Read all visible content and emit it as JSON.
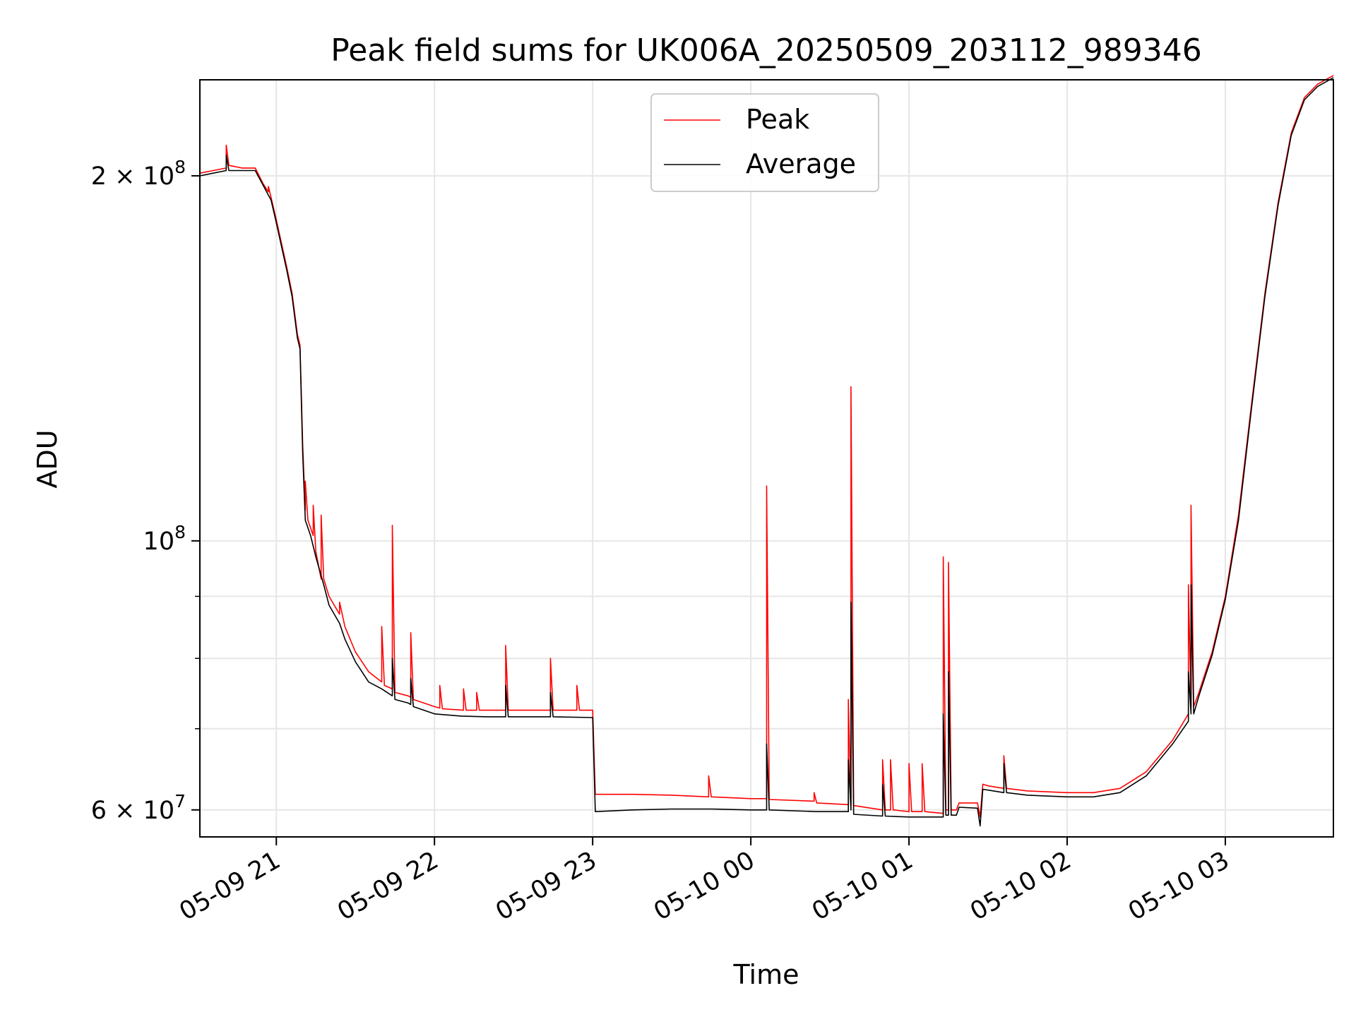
{
  "chart_data": {
    "type": "line",
    "title": "Peak field sums for UK006A_20250509_203112_989346",
    "xlabel": "Time",
    "ylabel": "ADU",
    "y_scale": "log",
    "ylim": [
      57000000,
      240000000
    ],
    "xlim": [
      "05-09 20:31",
      "05-10 03:41"
    ],
    "grid": true,
    "legend_position": "top-center",
    "x_ticks": [
      {
        "t": "05-09 21:00",
        "label": "05-09 21"
      },
      {
        "t": "05-09 22:00",
        "label": "05-09 22"
      },
      {
        "t": "05-09 23:00",
        "label": "05-09 23"
      },
      {
        "t": "05-10 00:00",
        "label": "05-10 00"
      },
      {
        "t": "05-10 01:00",
        "label": "05-10 01"
      },
      {
        "t": "05-10 02:00",
        "label": "05-10 02"
      },
      {
        "t": "05-10 03:00",
        "label": "05-10 03"
      }
    ],
    "y_ticks": [
      {
        "v": 200000000,
        "base": "2 × 10",
        "exp": "8"
      },
      {
        "v": 100000000,
        "base": "10",
        "exp": "8"
      },
      {
        "v": 60000000,
        "base": "6 × 10",
        "exp": "7"
      }
    ],
    "y_minor_ticks": [
      70000000,
      80000000,
      90000000
    ],
    "series": [
      {
        "name": "Peak",
        "color": "#ff0000",
        "points": [
          [
            "05-09 20:31",
            201000000
          ],
          [
            "05-09 20:36",
            202000000
          ],
          [
            "05-09 20:41",
            203000000
          ],
          [
            "05-09 20:41",
            212000000
          ],
          [
            "05-09 20:42",
            204000000
          ],
          [
            "05-09 20:47",
            203000000
          ],
          [
            "05-09 20:52",
            203000000
          ],
          [
            "05-09 20:55",
            197000000
          ],
          [
            "05-09 20:57",
            194000000
          ],
          [
            "05-09 20:57",
            196000000
          ],
          [
            "05-09 20:58",
            192000000
          ],
          [
            "05-09 21:00",
            184000000
          ],
          [
            "05-09 21:04",
            168000000
          ],
          [
            "05-09 21:06",
            160000000
          ],
          [
            "05-09 21:08",
            148000000
          ],
          [
            "05-09 21:09",
            145000000
          ],
          [
            "05-09 21:10",
            120000000
          ],
          [
            "05-09 21:11",
            106000000
          ],
          [
            "05-09 21:11",
            112000000
          ],
          [
            "05-09 21:12",
            104000000
          ],
          [
            "05-09 21:14",
            101000000
          ],
          [
            "05-09 21:14",
            107000000
          ],
          [
            "05-09 21:15",
            98000000
          ],
          [
            "05-09 21:17",
            93000000
          ],
          [
            "05-09 21:17",
            105000000
          ],
          [
            "05-09 21:18",
            93000000
          ],
          [
            "05-09 21:20",
            90000000
          ],
          [
            "05-09 21:24",
            87000000
          ],
          [
            "05-09 21:24",
            89000000
          ],
          [
            "05-09 21:26",
            85000000
          ],
          [
            "05-09 21:30",
            81000000
          ],
          [
            "05-09 21:35",
            78000000
          ],
          [
            "05-09 21:40",
            76500000
          ],
          [
            "05-09 21:40",
            85000000
          ],
          [
            "05-09 21:41",
            76000000
          ],
          [
            "05-09 21:44",
            75500000
          ],
          [
            "05-09 21:44",
            103000000
          ],
          [
            "05-09 21:45",
            75000000
          ],
          [
            "05-09 21:50",
            74500000
          ],
          [
            "05-09 21:51",
            74300000
          ],
          [
            "05-09 21:51",
            84000000
          ],
          [
            "05-09 21:52",
            74000000
          ],
          [
            "05-09 22:00",
            73000000
          ],
          [
            "05-09 22:02",
            72800000
          ],
          [
            "05-09 22:02",
            76000000
          ],
          [
            "05-09 22:03",
            72700000
          ],
          [
            "05-09 22:11",
            72500000
          ],
          [
            "05-09 22:11",
            75500000
          ],
          [
            "05-09 22:12",
            72500000
          ],
          [
            "05-09 22:16",
            72500000
          ],
          [
            "05-09 22:16",
            75000000
          ],
          [
            "05-09 22:17",
            72500000
          ],
          [
            "05-09 22:27",
            72500000
          ],
          [
            "05-09 22:27",
            82000000
          ],
          [
            "05-09 22:28",
            72500000
          ],
          [
            "05-09 22:44",
            72500000
          ],
          [
            "05-09 22:44",
            80000000
          ],
          [
            "05-09 22:45",
            72500000
          ],
          [
            "05-09 22:54",
            72500000
          ],
          [
            "05-09 22:54",
            76000000
          ],
          [
            "05-09 22:55",
            72500000
          ],
          [
            "05-09 23:00",
            72500000
          ],
          [
            "05-09 23:01",
            61800000
          ],
          [
            "05-09 23:15",
            61800000
          ],
          [
            "05-09 23:30",
            61700000
          ],
          [
            "05-09 23:44",
            61500000
          ],
          [
            "05-09 23:44",
            64000000
          ],
          [
            "05-09 23:45",
            61500000
          ],
          [
            "05-10 00:00",
            61300000
          ],
          [
            "05-10 00:06",
            61300000
          ],
          [
            "05-10 00:06",
            111000000
          ],
          [
            "05-10 00:07",
            61200000
          ],
          [
            "05-10 00:24",
            61000000
          ],
          [
            "05-10 00:24",
            62000000
          ],
          [
            "05-10 00:25",
            60800000
          ],
          [
            "05-10 00:37",
            60600000
          ],
          [
            "05-10 00:37",
            74000000
          ],
          [
            "05-10 00:38",
            60500000
          ],
          [
            "05-10 00:38",
            134000000
          ],
          [
            "05-10 00:39",
            60500000
          ],
          [
            "05-10 00:50",
            60000000
          ],
          [
            "05-10 00:50",
            66000000
          ],
          [
            "05-10 00:51",
            60000000
          ],
          [
            "05-10 00:53",
            60000000
          ],
          [
            "05-10 00:53",
            66000000
          ],
          [
            "05-10 00:54",
            60000000
          ],
          [
            "05-10 01:00",
            59800000
          ],
          [
            "05-10 01:00",
            65500000
          ],
          [
            "05-10 01:01",
            59800000
          ],
          [
            "05-10 01:05",
            59800000
          ],
          [
            "05-10 01:05",
            65500000
          ],
          [
            "05-10 01:06",
            59800000
          ],
          [
            "05-10 01:13",
            59600000
          ],
          [
            "05-10 01:13",
            97000000
          ],
          [
            "05-10 01:14",
            60000000
          ],
          [
            "05-10 01:15",
            60000000
          ],
          [
            "05-10 01:15",
            96000000
          ],
          [
            "05-10 01:16",
            60000000
          ],
          [
            "05-10 01:18",
            60000000
          ],
          [
            "05-10 01:19",
            60800000
          ],
          [
            "05-10 01:26",
            60800000
          ],
          [
            "05-10 01:27",
            59200000
          ],
          [
            "05-10 01:28",
            63000000
          ],
          [
            "05-10 01:30",
            62800000
          ],
          [
            "05-10 01:36",
            62500000
          ],
          [
            "05-10 01:36",
            66500000
          ],
          [
            "05-10 01:37",
            62500000
          ],
          [
            "05-10 01:45",
            62200000
          ],
          [
            "05-10 02:00",
            62000000
          ],
          [
            "05-10 02:10",
            62000000
          ],
          [
            "05-10 02:20",
            62500000
          ],
          [
            "05-10 02:30",
            64500000
          ],
          [
            "05-10 02:40",
            68500000
          ],
          [
            "05-10 02:46",
            72000000
          ],
          [
            "05-10 02:46",
            92000000
          ],
          [
            "05-10 02:47",
            73000000
          ],
          [
            "05-10 02:47",
            107000000
          ],
          [
            "05-10 02:48",
            73000000
          ],
          [
            "05-10 02:50",
            75000000
          ],
          [
            "05-10 02:55",
            81000000
          ],
          [
            "05-10 03:00",
            90000000
          ],
          [
            "05-10 03:05",
            105000000
          ],
          [
            "05-10 03:10",
            130000000
          ],
          [
            "05-10 03:15",
            160000000
          ],
          [
            "05-10 03:20",
            190000000
          ],
          [
            "05-10 03:25",
            217000000
          ],
          [
            "05-10 03:30",
            232000000
          ],
          [
            "05-10 03:35",
            238000000
          ],
          [
            "05-10 03:41",
            242000000
          ]
        ]
      },
      {
        "name": "Average",
        "color": "#000000",
        "points": [
          [
            "05-09 20:31",
            200000000
          ],
          [
            "05-09 20:36",
            201000000
          ],
          [
            "05-09 20:41",
            202000000
          ],
          [
            "05-09 20:41",
            208000000
          ],
          [
            "05-09 20:42",
            202000000
          ],
          [
            "05-09 20:47",
            202000000
          ],
          [
            "05-09 20:52",
            202000000
          ],
          [
            "05-09 20:58",
            191000000
          ],
          [
            "05-09 21:00",
            183000000
          ],
          [
            "05-09 21:04",
            167000000
          ],
          [
            "05-09 21:06",
            159000000
          ],
          [
            "05-09 21:08",
            147000000
          ],
          [
            "05-09 21:09",
            144000000
          ],
          [
            "05-09 21:10",
            118000000
          ],
          [
            "05-09 21:11",
            104000000
          ],
          [
            "05-09 21:13",
            101000000
          ],
          [
            "05-09 21:15",
            97000000
          ],
          [
            "05-09 21:18",
            92000000
          ],
          [
            "05-09 21:20",
            88500000
          ],
          [
            "05-09 21:24",
            85500000
          ],
          [
            "05-09 21:26",
            83000000
          ],
          [
            "05-09 21:30",
            79500000
          ],
          [
            "05-09 21:35",
            76500000
          ],
          [
            "05-09 21:40",
            75500000
          ],
          [
            "05-09 21:44",
            74500000
          ],
          [
            "05-09 21:44",
            80000000
          ],
          [
            "05-09 21:45",
            74000000
          ],
          [
            "05-09 21:50",
            73500000
          ],
          [
            "05-09 21:51",
            73300000
          ],
          [
            "05-09 21:51",
            77000000
          ],
          [
            "05-09 21:52",
            73000000
          ],
          [
            "05-09 22:00",
            72000000
          ],
          [
            "05-09 22:10",
            71700000
          ],
          [
            "05-09 22:20",
            71600000
          ],
          [
            "05-09 22:27",
            71600000
          ],
          [
            "05-09 22:27",
            76000000
          ],
          [
            "05-09 22:28",
            71600000
          ],
          [
            "05-09 22:44",
            71600000
          ],
          [
            "05-09 22:44",
            75000000
          ],
          [
            "05-09 22:45",
            71600000
          ],
          [
            "05-09 23:00",
            71500000
          ],
          [
            "05-09 23:01",
            59800000
          ],
          [
            "05-09 23:15",
            60000000
          ],
          [
            "05-09 23:30",
            60100000
          ],
          [
            "05-09 23:45",
            60100000
          ],
          [
            "05-10 00:00",
            60000000
          ],
          [
            "05-10 00:06",
            60000000
          ],
          [
            "05-10 00:06",
            68000000
          ],
          [
            "05-10 00:07",
            60000000
          ],
          [
            "05-10 00:25",
            59800000
          ],
          [
            "05-10 00:37",
            59800000
          ],
          [
            "05-10 00:37",
            66000000
          ],
          [
            "05-10 00:38",
            60000000
          ],
          [
            "05-10 00:38",
            89000000
          ],
          [
            "05-10 00:39",
            59500000
          ],
          [
            "05-10 00:50",
            59300000
          ],
          [
            "05-10 00:50",
            63000000
          ],
          [
            "05-10 00:51",
            59300000
          ],
          [
            "05-10 01:00",
            59200000
          ],
          [
            "05-10 01:13",
            59200000
          ],
          [
            "05-10 01:13",
            72000000
          ],
          [
            "05-10 01:14",
            59400000
          ],
          [
            "05-10 01:15",
            59400000
          ],
          [
            "05-10 01:15",
            78000000
          ],
          [
            "05-10 01:16",
            59400000
          ],
          [
            "05-10 01:18",
            59400000
          ],
          [
            "05-10 01:19",
            60300000
          ],
          [
            "05-10 01:26",
            60200000
          ],
          [
            "05-10 01:27",
            58200000
          ],
          [
            "05-10 01:28",
            62400000
          ],
          [
            "05-10 01:30",
            62300000
          ],
          [
            "05-10 01:36",
            62000000
          ],
          [
            "05-10 01:36",
            65500000
          ],
          [
            "05-10 01:37",
            62000000
          ],
          [
            "05-10 01:45",
            61700000
          ],
          [
            "05-10 02:00",
            61500000
          ],
          [
            "05-10 02:10",
            61500000
          ],
          [
            "05-10 02:20",
            62000000
          ],
          [
            "05-10 02:30",
            64000000
          ],
          [
            "05-10 02:40",
            68000000
          ],
          [
            "05-10 02:46",
            71000000
          ],
          [
            "05-10 02:46",
            78000000
          ],
          [
            "05-10 02:47",
            72000000
          ],
          [
            "05-10 02:47",
            92000000
          ],
          [
            "05-10 02:48",
            72000000
          ],
          [
            "05-10 02:50",
            74500000
          ],
          [
            "05-10 02:55",
            80500000
          ],
          [
            "05-10 03:00",
            89500000
          ],
          [
            "05-10 03:05",
            104000000
          ],
          [
            "05-10 03:10",
            129000000
          ],
          [
            "05-10 03:15",
            159000000
          ],
          [
            "05-10 03:20",
            189000000
          ],
          [
            "05-10 03:25",
            216000000
          ],
          [
            "05-10 03:30",
            231000000
          ],
          [
            "05-10 03:35",
            237000000
          ],
          [
            "05-10 03:41",
            241000000
          ]
        ]
      }
    ]
  }
}
